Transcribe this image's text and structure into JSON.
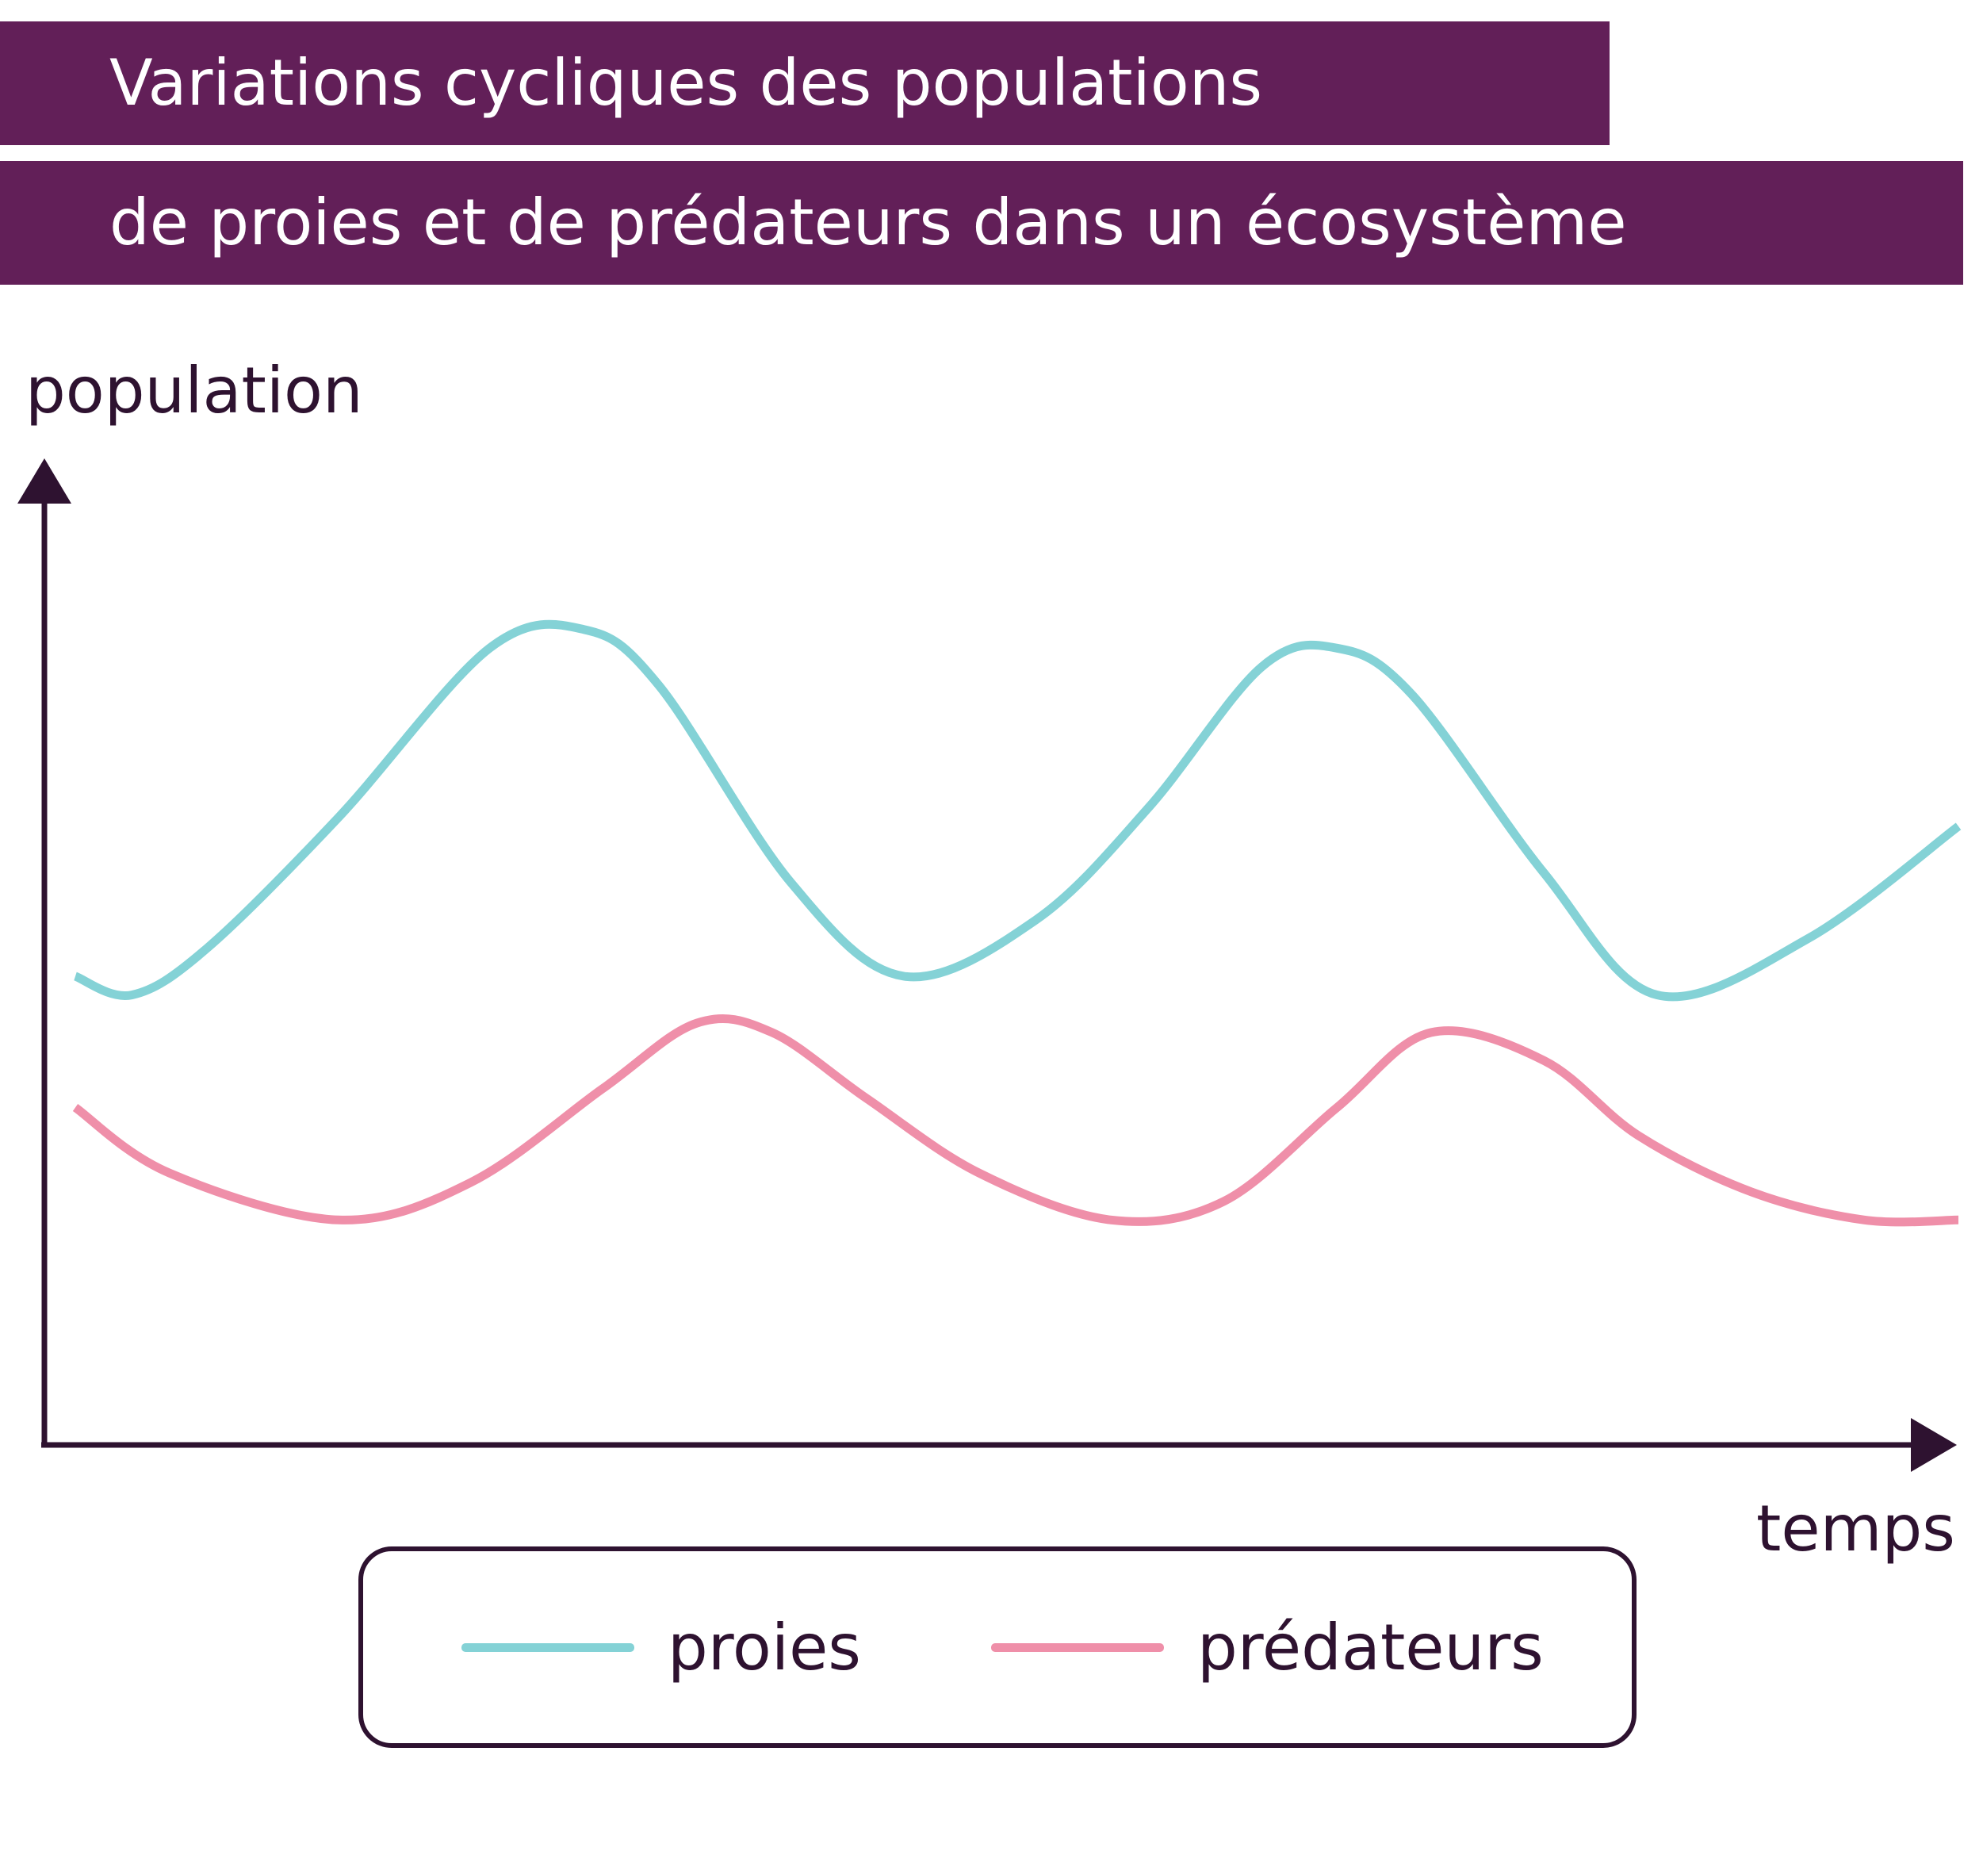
{
  "header": {
    "title_line1": "Variations cycliques des populations",
    "title_line2": "de proies et de prédateurs dans un écosystème",
    "band_color": "#621f58"
  },
  "chart_data": {
    "type": "line",
    "ylabel": "population",
    "xlabel": "temps",
    "x_ticks": false,
    "y_ticks": false,
    "grid": false,
    "legend_position": "bottom",
    "series": [
      {
        "name": "proies",
        "color": "#84d2d6",
        "points": [
          [
            0.0,
            0.5
          ],
          [
            0.03,
            0.48
          ],
          [
            0.07,
            0.53
          ],
          [
            0.14,
            0.67
          ],
          [
            0.22,
            0.85
          ],
          [
            0.27,
            0.87
          ],
          [
            0.31,
            0.81
          ],
          [
            0.38,
            0.6
          ],
          [
            0.44,
            0.5
          ],
          [
            0.51,
            0.56
          ],
          [
            0.57,
            0.68
          ],
          [
            0.63,
            0.83
          ],
          [
            0.67,
            0.85
          ],
          [
            0.71,
            0.8
          ],
          [
            0.78,
            0.61
          ],
          [
            0.84,
            0.48
          ],
          [
            0.92,
            0.54
          ],
          [
            1.0,
            0.66
          ]
        ]
      },
      {
        "name": "prédateurs",
        "color": "#ef8fa9",
        "points": [
          [
            0.0,
            0.36
          ],
          [
            0.05,
            0.29
          ],
          [
            0.14,
            0.24
          ],
          [
            0.21,
            0.28
          ],
          [
            0.28,
            0.38
          ],
          [
            0.33,
            0.45
          ],
          [
            0.37,
            0.44
          ],
          [
            0.42,
            0.37
          ],
          [
            0.48,
            0.29
          ],
          [
            0.55,
            0.24
          ],
          [
            0.61,
            0.26
          ],
          [
            0.67,
            0.36
          ],
          [
            0.72,
            0.44
          ],
          [
            0.78,
            0.41
          ],
          [
            0.83,
            0.33
          ],
          [
            0.89,
            0.27
          ],
          [
            0.95,
            0.24
          ],
          [
            1.0,
            0.24
          ]
        ]
      }
    ]
  },
  "legend": {
    "items": [
      {
        "label": "proies",
        "color": "#84d2d6"
      },
      {
        "label": "prédateurs",
        "color": "#ef8fa9"
      }
    ]
  }
}
